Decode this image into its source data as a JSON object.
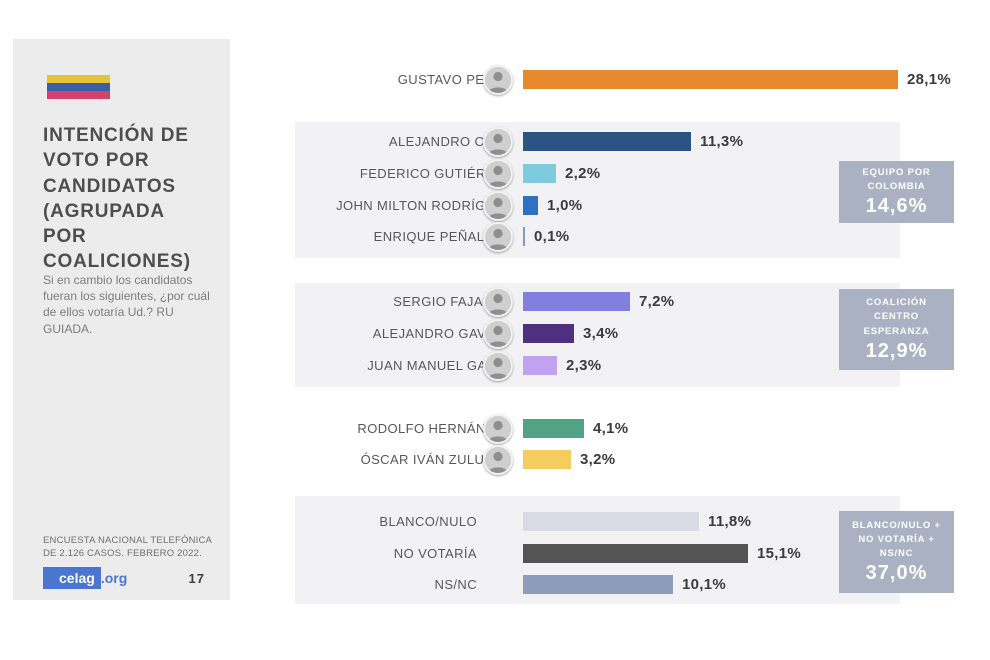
{
  "sidebar": {
    "title": "INTENCIÓN DE\nVOTO POR\nCANDIDATOS\n(AGRUPADA\nPOR\nCOALICIONES)",
    "subtitle": "Si en cambio los candidatos fueran los siguientes, ¿por cuál de ellos votaría Ud.? RU GUIADA.",
    "footnote": "ENCUESTA NACIONAL TELEFÓNICA DE 2.126 CASOS. FEBRERO 2022.",
    "logo": {
      "primary": "celag",
      "suffix": ".org"
    },
    "page_number": "17",
    "flag_colors": [
      "#e5c43c",
      "#3c5da8",
      "#d4426c"
    ]
  },
  "colors": {
    "sidebar_bg": "#ececec",
    "band_bg": "#f2f2f4",
    "coalition_box_bg": "#a9b1c2",
    "logo_blue": "#4a76cf",
    "label_text": "#56575b",
    "value_text": "#3b3b3b"
  },
  "chart_data": {
    "type": "bar",
    "orientation": "horizontal",
    "unit": "%",
    "decimal_separator": ",",
    "title": "Intención de voto por candidatos (agrupada por coaliciones)",
    "groups": [
      {
        "coalition": null,
        "rows": [
          {
            "label": "GUSTAVO PETRO",
            "value": 28.1,
            "display": "28,1%",
            "color": "#e8892e",
            "avatar": true
          }
        ]
      },
      {
        "coalition": {
          "name": "EQUIPO POR COLOMBIA",
          "lines": [
            "EQUIPO POR",
            "COLOMBIA"
          ],
          "total": 14.6,
          "total_display": "14,6%"
        },
        "rows": [
          {
            "label": "ALEJANDRO CHAR",
            "value": 11.3,
            "display": "11,3%",
            "color": "#2b5384",
            "avatar": true
          },
          {
            "label": "FEDERICO GUTIÉRREZ",
            "value": 2.2,
            "display": "2,2%",
            "color": "#7ecbdf",
            "avatar": true
          },
          {
            "label": "JOHN MILTON RODRÍGUEZ",
            "value": 1.0,
            "display": "1,0%",
            "color": "#2e70c3",
            "avatar": true
          },
          {
            "label": "ENRIQUE PEÑALOSA",
            "value": 0.1,
            "display": "0,1%",
            "color": "#7d9cc0",
            "avatar": true
          }
        ]
      },
      {
        "coalition": {
          "name": "COALICIÓN CENTRO ESPERANZA",
          "lines": [
            "COALICIÓN",
            "CENTRO",
            "ESPERANZA"
          ],
          "total": 12.9,
          "total_display": "12,9%"
        },
        "rows": [
          {
            "label": "SERGIO FAJARDO",
            "value": 7.2,
            "display": "7,2%",
            "color": "#837ee2",
            "avatar": true
          },
          {
            "label": "ALEJANDRO GAVIRIA",
            "value": 3.4,
            "display": "3,4%",
            "color": "#4e2f80",
            "avatar": true
          },
          {
            "label": "JUAN MANUEL GALÁN",
            "value": 2.3,
            "display": "2,3%",
            "color": "#c0a2f0",
            "avatar": true
          }
        ]
      },
      {
        "coalition": null,
        "rows": [
          {
            "label": "RODOLFO HERNÁNDEZ",
            "value": 4.1,
            "display": "4,1%",
            "color": "#52a385",
            "avatar": true
          },
          {
            "label": "ÓSCAR IVÁN ZULUAGA",
            "value": 3.2,
            "display": "3,2%",
            "color": "#f3cd5e",
            "avatar": true
          }
        ]
      },
      {
        "coalition": {
          "name": "BLANCO/NULO + NO VOTARÍA + NS/NC",
          "lines": [
            "BLANCO/NULO +",
            "NO VOTARÍA +",
            "NS/NC"
          ],
          "total": 37.0,
          "total_display": "37,0%"
        },
        "rows": [
          {
            "label": "BLANCO/NULO",
            "value": 11.8,
            "display": "11,8%",
            "color": "#d8dbe4",
            "avatar": false
          },
          {
            "label": "NO VOTARÍA",
            "value": 15.1,
            "display": "15,1%",
            "color": "#545454",
            "avatar": false
          },
          {
            "label": "NS/NC",
            "value": 10.1,
            "display": "10,1%",
            "color": "#8d9cba",
            "avatar": false
          }
        ]
      }
    ]
  }
}
